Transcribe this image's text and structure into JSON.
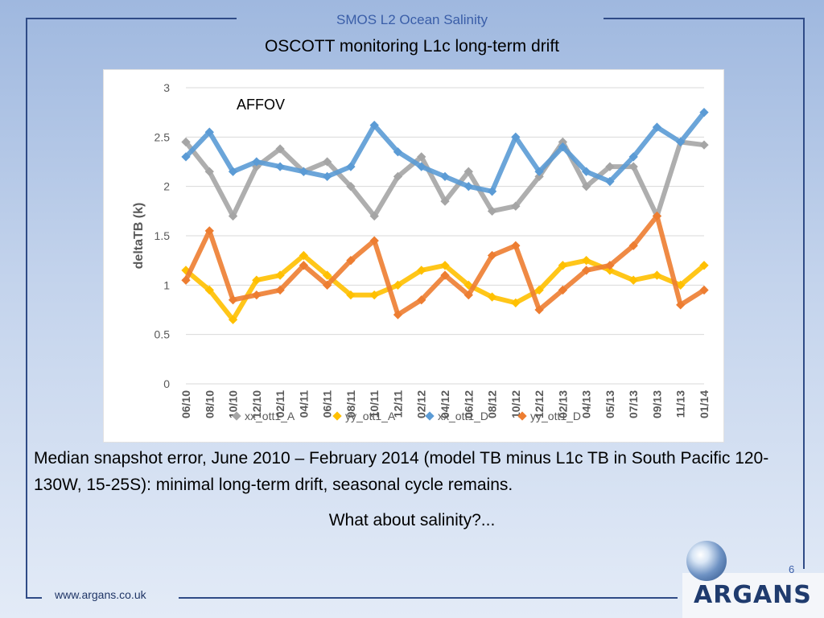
{
  "header": {
    "title": "SMOS L2 Ocean Salinity"
  },
  "slide": {
    "title": "OSCOTT monitoring L1c long-term drift",
    "caption": "Median snapshot error, June 2010 – February 2014 (model TB minus L1c TB in South Pacific 120-130W, 15-25S): minimal long-term drift, seasonal cycle remains.",
    "question": "What about salinity?...",
    "page_number": "6"
  },
  "footer": {
    "url": "www.argans.co.uk",
    "logo_text": "ARGANS"
  },
  "chart_data": {
    "type": "scatter",
    "annotation": "AFFOV",
    "ylabel": "deltaTB (k)",
    "xlabel": "",
    "ylim": [
      0,
      3
    ],
    "yticks": [
      "0",
      "0.5",
      "1",
      "1.5",
      "2",
      "2.5",
      "3"
    ],
    "grid": true,
    "legend_position": "bottom",
    "x_tick_labels": [
      "06/10",
      "08/10",
      "10/10",
      "12/10",
      "02/11",
      "04/11",
      "06/11",
      "08/11",
      "10/11",
      "12/11",
      "02/12",
      "04/12",
      "06/12",
      "08/12",
      "10/12",
      "12/12",
      "02/13",
      "04/13",
      "05/13",
      "07/13",
      "09/13",
      "11/13",
      "01/14"
    ],
    "series": [
      {
        "name": "xx_ott1_A",
        "color": "#a5a5a5",
        "x": [
          "06/10",
          "08/10",
          "10/10",
          "12/10",
          "02/11",
          "04/11",
          "06/11",
          "08/11",
          "10/11",
          "12/11",
          "02/12",
          "04/12",
          "06/12",
          "08/12",
          "10/12",
          "12/12",
          "02/13",
          "04/13",
          "05/13",
          "07/13",
          "09/13",
          "11/13",
          "01/14"
        ],
        "values": [
          2.45,
          2.15,
          1.7,
          2.2,
          2.38,
          2.15,
          2.25,
          2.0,
          1.7,
          2.1,
          2.3,
          1.85,
          2.15,
          1.75,
          1.8,
          2.1,
          2.45,
          2.0,
          2.2,
          2.2,
          1.7,
          2.45,
          2.42
        ]
      },
      {
        "name": "yy_ott1_A",
        "color": "#ffc000",
        "x": [
          "06/10",
          "08/10",
          "10/10",
          "12/10",
          "02/11",
          "04/11",
          "06/11",
          "08/11",
          "10/11",
          "12/11",
          "02/12",
          "04/12",
          "06/12",
          "08/12",
          "10/12",
          "12/12",
          "02/13",
          "04/13",
          "05/13",
          "07/13",
          "09/13",
          "11/13",
          "01/14"
        ],
        "values": [
          1.15,
          0.95,
          0.65,
          1.05,
          1.1,
          1.3,
          1.1,
          0.9,
          0.9,
          1.0,
          1.15,
          1.2,
          1.0,
          0.88,
          0.82,
          0.95,
          1.2,
          1.25,
          1.15,
          1.05,
          1.1,
          1.0,
          1.2
        ]
      },
      {
        "name": "xx_ott1_D",
        "color": "#5b9bd5",
        "x": [
          "06/10",
          "08/10",
          "10/10",
          "12/10",
          "02/11",
          "04/11",
          "06/11",
          "08/11",
          "10/11",
          "12/11",
          "02/12",
          "04/12",
          "06/12",
          "08/12",
          "10/12",
          "12/12",
          "02/13",
          "04/13",
          "05/13",
          "07/13",
          "09/13",
          "11/13",
          "01/14"
        ],
        "values": [
          2.3,
          2.55,
          2.15,
          2.25,
          2.2,
          2.15,
          2.1,
          2.2,
          2.62,
          2.35,
          2.2,
          2.1,
          2.0,
          1.95,
          2.5,
          2.15,
          2.4,
          2.15,
          2.05,
          2.3,
          2.6,
          2.45,
          2.75
        ]
      },
      {
        "name": "yy_ott1_D",
        "color": "#ed7d31",
        "x": [
          "06/10",
          "08/10",
          "10/10",
          "12/10",
          "02/11",
          "04/11",
          "06/11",
          "08/11",
          "10/11",
          "12/11",
          "02/12",
          "04/12",
          "06/12",
          "08/12",
          "10/12",
          "12/12",
          "02/13",
          "04/13",
          "05/13",
          "07/13",
          "09/13",
          "11/13",
          "01/14"
        ],
        "values": [
          1.05,
          1.55,
          0.85,
          0.9,
          0.95,
          1.2,
          1.0,
          1.25,
          1.45,
          0.7,
          0.85,
          1.1,
          0.9,
          1.3,
          1.4,
          0.75,
          0.95,
          1.15,
          1.2,
          1.4,
          1.7,
          0.8,
          0.95
        ]
      }
    ]
  }
}
